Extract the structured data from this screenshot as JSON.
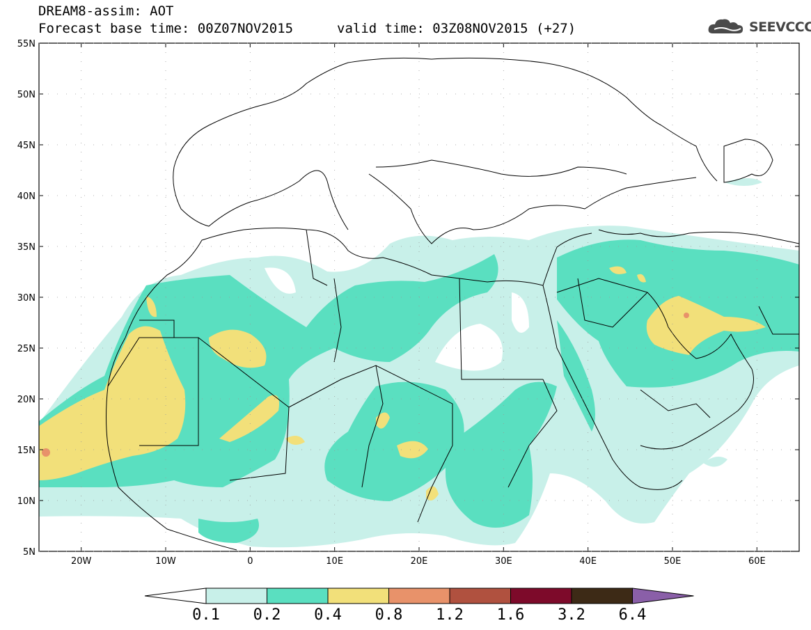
{
  "header": {
    "title": "DREAM8-assim: AOT",
    "base_time": "Forecast base time: 00Z07NOV2015",
    "valid_time": "valid time: 03Z08NOV2015 (+27)",
    "logo_text": "SEEVCCC"
  },
  "map": {
    "lon_range": [
      -25,
      65
    ],
    "lat_range": [
      5,
      55
    ],
    "lat_labels": [
      "55N",
      "50N",
      "45N",
      "40N",
      "35N",
      "30N",
      "25N",
      "20N",
      "15N",
      "10N",
      "5N"
    ],
    "lon_labels": [
      "20W",
      "10W",
      "0",
      "10E",
      "20E",
      "30E",
      "40E",
      "50E",
      "60E"
    ]
  },
  "colorbar": {
    "labels": [
      "0.1",
      "0.2",
      "0.4",
      "0.8",
      "1.2",
      "1.6",
      "3.2",
      "6.4"
    ],
    "colors": [
      "#ffffff",
      "#c8f0e9",
      "#5adfc0",
      "#f2e07a",
      "#e8926a",
      "#b0513f",
      "#7d0a2a",
      "#3d2a16",
      "#8a5fa8"
    ]
  },
  "colors": {
    "aot_01": "#c8f0e9",
    "aot_02": "#5adfc0",
    "aot_04": "#f2e07a",
    "aot_08": "#e8926a"
  }
}
